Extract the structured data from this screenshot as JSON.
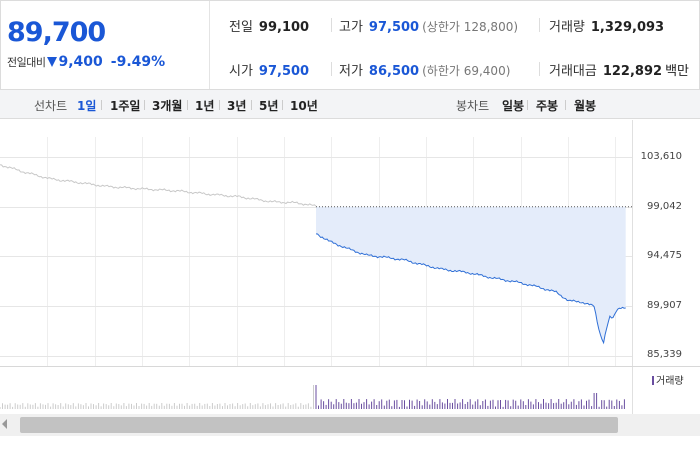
{
  "summary": {
    "current_price": "89,700",
    "change_label": "전일대비",
    "change_amount": "9,400",
    "change_percent": "-9.49%",
    "prev_close_label": "전일",
    "prev_close": "99,100",
    "high_label": "고가",
    "high": "97,500",
    "upper_limit": "(상한가 128,800)",
    "volume_label": "거래량",
    "volume": "1,329,093",
    "open_label": "시가",
    "open": "97,500",
    "low_label": "저가",
    "low": "86,500",
    "lower_limit": "(하한가 69,400)",
    "trade_value_label": "거래대금",
    "trade_value": "122,892",
    "trade_value_unit": "백만"
  },
  "tabs": {
    "line_title": "선차트",
    "line_items": [
      "1일",
      "1주일",
      "3개월",
      "1년",
      "3년",
      "5년",
      "10년"
    ],
    "line_active": "1일",
    "candle_title": "봉차트",
    "candle_items": [
      "일봉",
      "주봉",
      "월봉"
    ]
  },
  "colors": {
    "accent_blue": "#1a57d6",
    "prev_day_line": "#c8c8c8",
    "today_line": "#2f6fd6",
    "fill": "#e4ecfa",
    "volume": "#6a4ea0"
  },
  "chart_data": {
    "type": "line",
    "y_ticks": [
      "103,610",
      "99,042",
      "94,475",
      "89,907",
      "85,339"
    ],
    "y_tick_values": [
      103610,
      99042,
      94475,
      89907,
      85339
    ],
    "ylim": [
      85339,
      103610
    ],
    "reference_price": 99042,
    "series": [
      {
        "points_rel": [
          [
            0.0,
            102900
          ],
          [
            0.04,
            102200
          ],
          [
            0.08,
            101600
          ],
          [
            0.12,
            101300
          ],
          [
            0.17,
            100900
          ],
          [
            0.22,
            100700
          ],
          [
            0.28,
            100500
          ],
          [
            0.33,
            100200
          ],
          [
            0.38,
            99950
          ],
          [
            0.43,
            99500
          ],
          [
            0.47,
            99400
          ],
          [
            0.5,
            99100
          ]
        ]
      },
      {
        "points_rel": [
          [
            0.5,
            96600
          ],
          [
            0.52,
            95900
          ],
          [
            0.55,
            95200
          ],
          [
            0.58,
            94600
          ],
          [
            0.61,
            94400
          ],
          [
            0.64,
            94150
          ],
          [
            0.67,
            93700
          ],
          [
            0.7,
            93300
          ],
          [
            0.74,
            93000
          ],
          [
            0.78,
            92500
          ],
          [
            0.82,
            92100
          ],
          [
            0.85,
            91700
          ],
          [
            0.88,
            91200
          ],
          [
            0.9,
            90400
          ],
          [
            0.92,
            90300
          ],
          [
            0.94,
            89900
          ],
          [
            0.945,
            88500
          ],
          [
            0.95,
            87300
          ],
          [
            0.955,
            86600
          ],
          [
            0.96,
            87900
          ],
          [
            0.965,
            88900
          ],
          [
            0.97,
            88800
          ],
          [
            0.975,
            89500
          ],
          [
            0.98,
            89800
          ],
          [
            0.99,
            89750
          ]
        ]
      }
    ],
    "volume_legend": "거래량"
  },
  "scrollbar": {
    "position": 0.03,
    "size": 0.86
  }
}
